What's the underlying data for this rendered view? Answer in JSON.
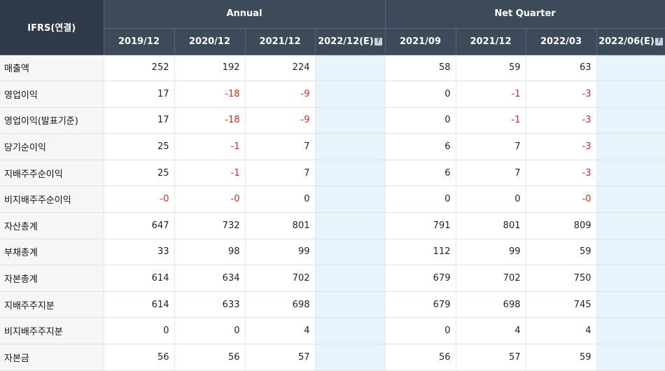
{
  "header": {
    "label_col": "IFRS(연결)",
    "group_annual": "Annual",
    "group_quarter": "Net Quarter",
    "annual_periods": [
      "2019/12",
      "2020/12",
      "2021/12",
      "2022/12(E)"
    ],
    "quarter_periods": [
      "2021/09",
      "2021/12",
      "2022/03",
      "2022/06(E)"
    ]
  },
  "rows": [
    {
      "label": "매출액",
      "annual": [
        "252",
        "192",
        "224",
        ""
      ],
      "quarter": [
        "58",
        "59",
        "63",
        ""
      ]
    },
    {
      "label": "영업이익",
      "annual": [
        "17",
        "-18",
        "-9",
        ""
      ],
      "quarter": [
        "0",
        "-1",
        "-3",
        ""
      ]
    },
    {
      "label": "영업이익(발표기준)",
      "annual": [
        "17",
        "-18",
        "-9",
        ""
      ],
      "quarter": [
        "0",
        "-1",
        "-3",
        ""
      ]
    },
    {
      "label": "당기순이익",
      "annual": [
        "25",
        "-1",
        "7",
        ""
      ],
      "quarter": [
        "6",
        "7",
        "-3",
        ""
      ]
    },
    {
      "label": "지배주주순이익",
      "annual": [
        "25",
        "-1",
        "7",
        ""
      ],
      "quarter": [
        "6",
        "7",
        "-3",
        ""
      ]
    },
    {
      "label": "비지배주주순이익",
      "annual": [
        "-0",
        "-0",
        "0",
        ""
      ],
      "quarter": [
        "0",
        "0",
        "-0",
        ""
      ]
    },
    {
      "label": "자산총계",
      "annual": [
        "647",
        "732",
        "801",
        ""
      ],
      "quarter": [
        "791",
        "801",
        "809",
        ""
      ]
    },
    {
      "label": "부채총계",
      "annual": [
        "33",
        "98",
        "99",
        ""
      ],
      "quarter": [
        "112",
        "99",
        "59",
        ""
      ]
    },
    {
      "label": "자본총계",
      "annual": [
        "614",
        "634",
        "702",
        ""
      ],
      "quarter": [
        "679",
        "702",
        "750",
        ""
      ]
    },
    {
      "label": "지배주주지분",
      "annual": [
        "614",
        "633",
        "698",
        ""
      ],
      "quarter": [
        "679",
        "698",
        "745",
        ""
      ]
    },
    {
      "label": "비지배주주지분",
      "annual": [
        "0",
        "0",
        "4",
        ""
      ],
      "quarter": [
        "0",
        "4",
        "4",
        ""
      ]
    },
    {
      "label": "자본금",
      "annual": [
        "56",
        "56",
        "57",
        ""
      ],
      "quarter": [
        "56",
        "57",
        "59",
        ""
      ]
    }
  ],
  "indent_rows": [
    4,
    5,
    9,
    10
  ],
  "help_icon_glyph": "?",
  "colors": {
    "header_bg": "#3c4a5a",
    "negative": "#e0281e",
    "estimate_bg": "#e8f4fb"
  }
}
